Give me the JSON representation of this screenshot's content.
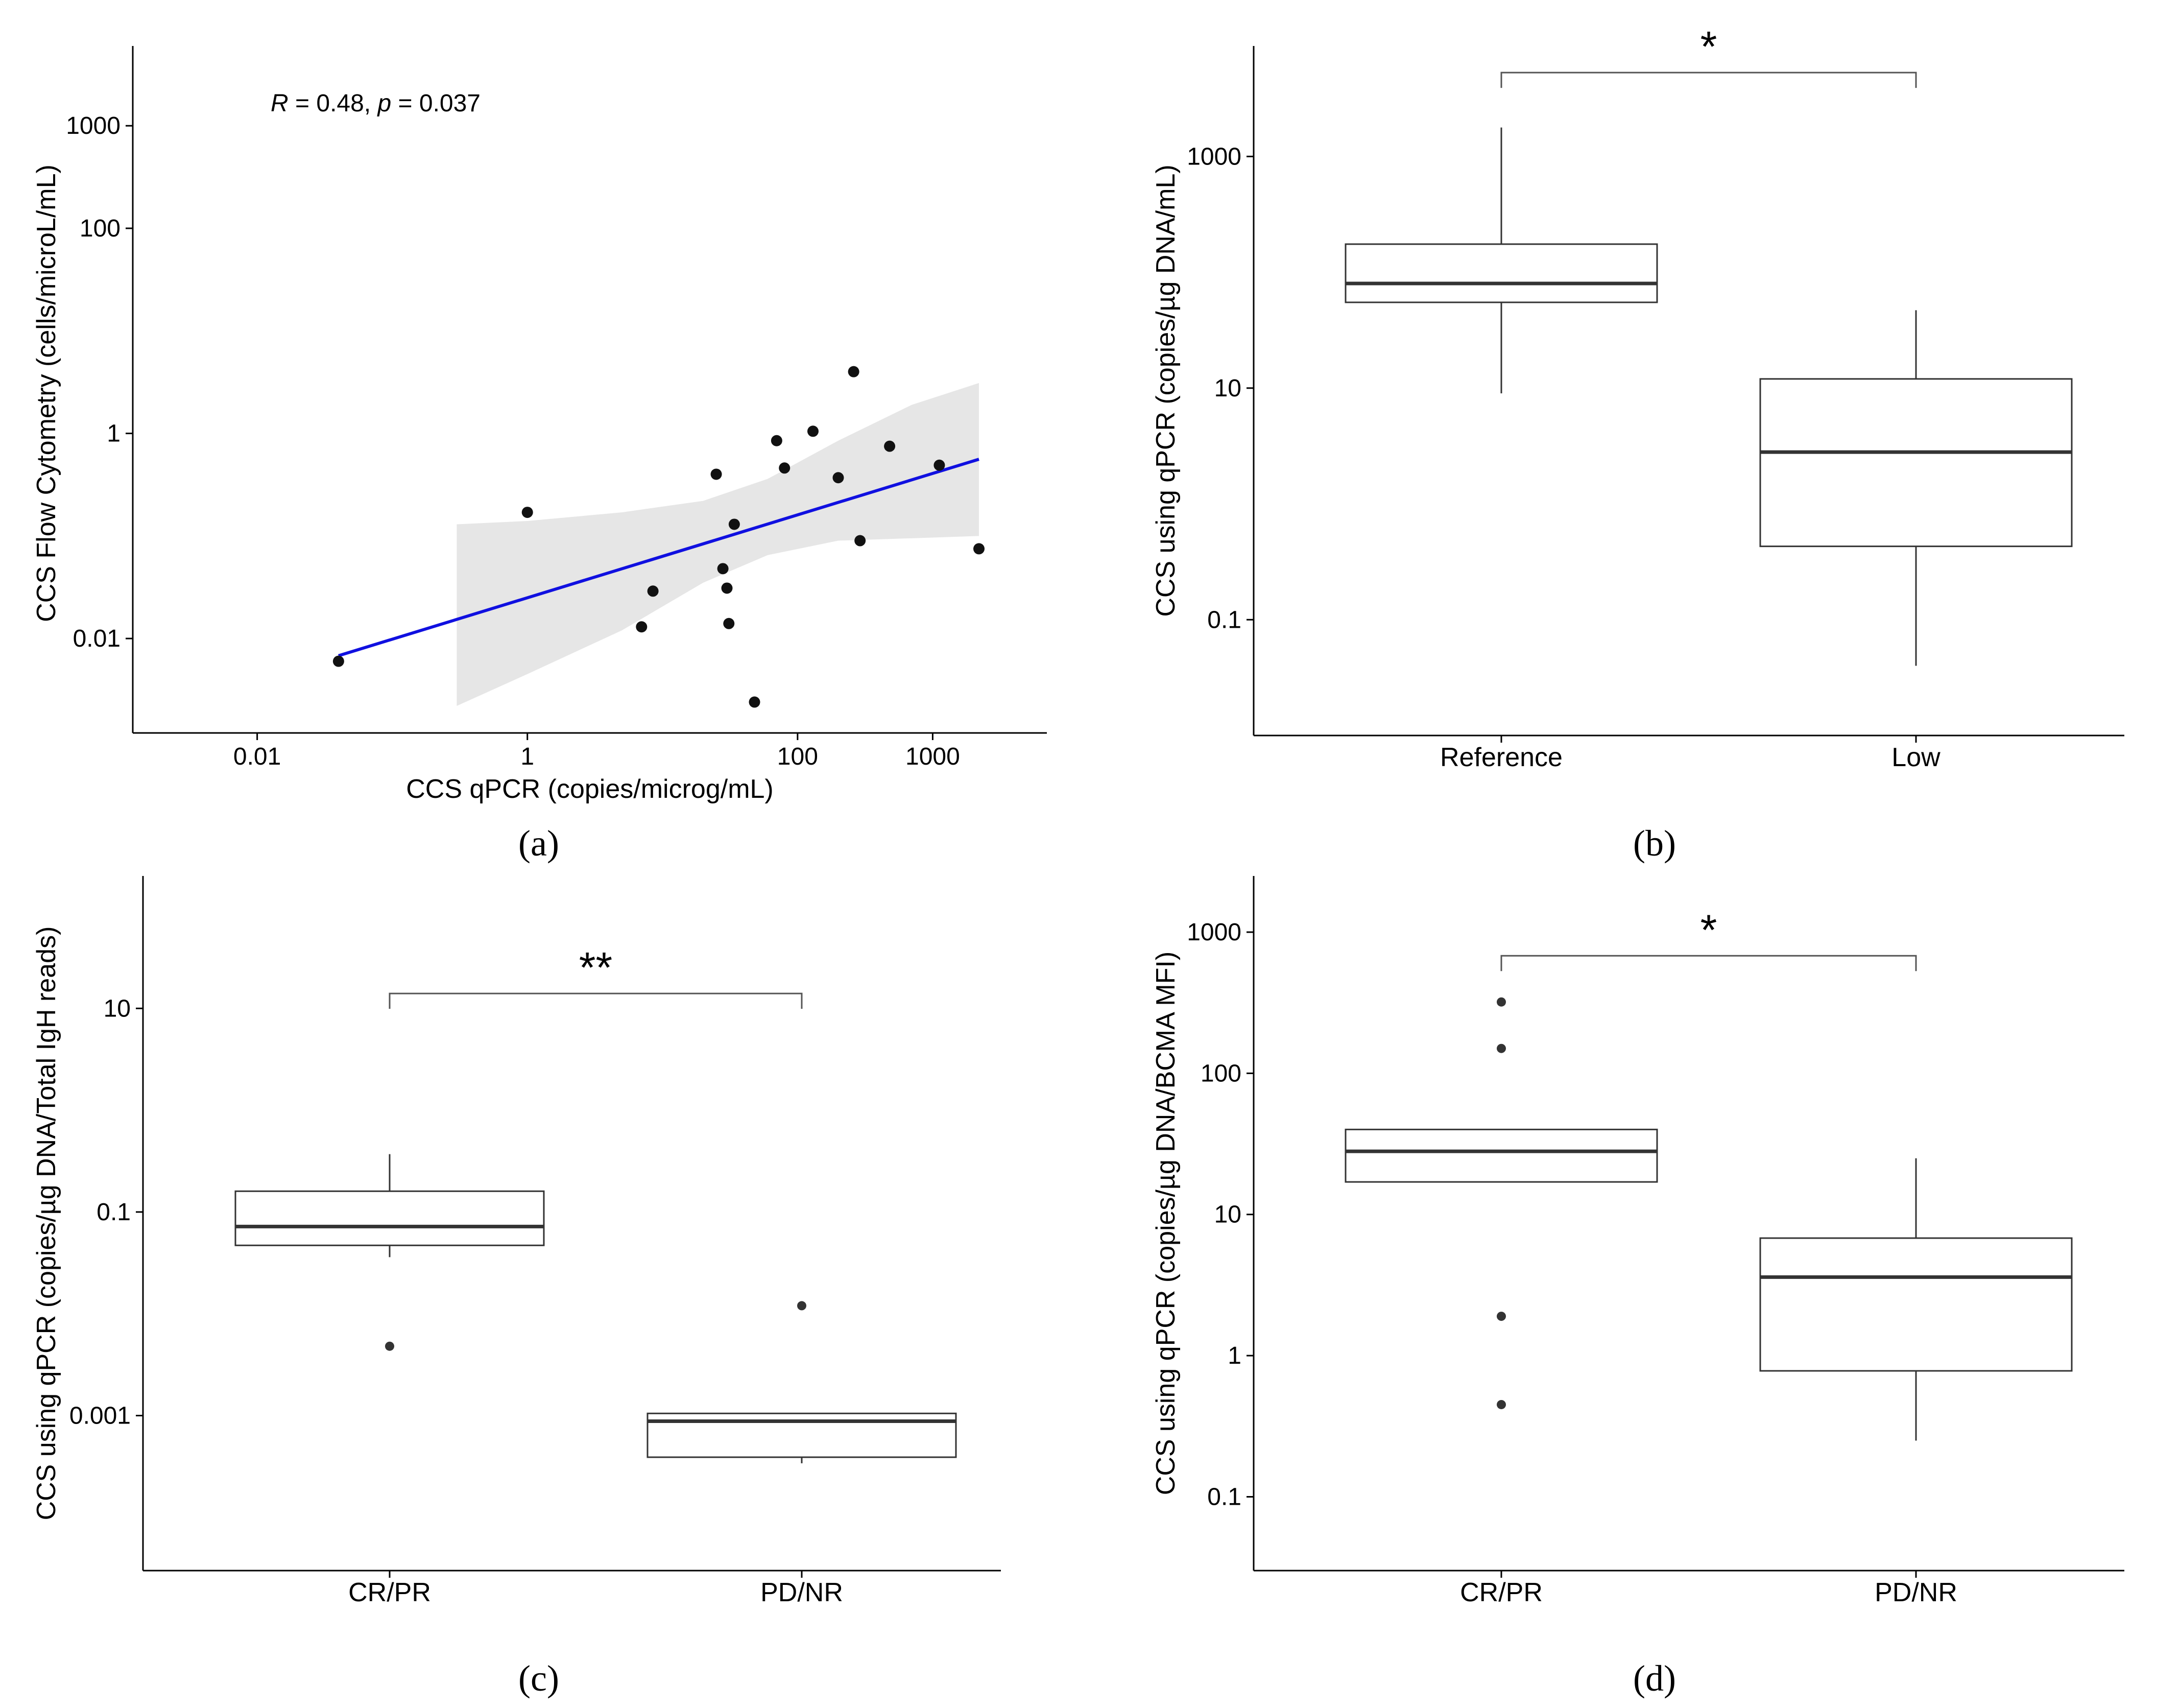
{
  "colors": {
    "line": "#1010e0",
    "band": "#e6e6e6",
    "point": "#111111",
    "point_inner": "#555555",
    "box": "#333333"
  },
  "chart_data": [
    {
      "id": "a",
      "type": "scatter",
      "panel_label": "(a)",
      "xlabel": "CCS qPCR (copies/microg/mL)",
      "ylabel": "CCS Flow Cytometry (cells/microL/mL)",
      "xscale": "log10",
      "yscale": "log10",
      "xlim": [
        0.0012,
        7000
      ],
      "ylim": [
        0.0012,
        6000
      ],
      "xticks": [
        0.01,
        1,
        100,
        1000
      ],
      "xtick_labels": [
        "0.01",
        "1",
        "100",
        "1000"
      ],
      "yticks": [
        0.01,
        1,
        100,
        1000
      ],
      "ytick_labels": [
        "0.01",
        "1",
        "100",
        "1000"
      ],
      "annotation": {
        "R": "0.48",
        "p": "0.037"
      },
      "points": [
        {
          "x": 0.04,
          "y": 0.006
        },
        {
          "x": 1.0,
          "y": 0.17
        },
        {
          "x": 7.0,
          "y": 0.013
        },
        {
          "x": 8.5,
          "y": 0.029
        },
        {
          "x": 25,
          "y": 0.4
        },
        {
          "x": 28,
          "y": 0.048
        },
        {
          "x": 30,
          "y": 0.031
        },
        {
          "x": 31,
          "y": 0.014
        },
        {
          "x": 34,
          "y": 0.13
        },
        {
          "x": 48,
          "y": 0.0024
        },
        {
          "x": 70,
          "y": 0.85
        },
        {
          "x": 80,
          "y": 0.46
        },
        {
          "x": 130,
          "y": 1.05
        },
        {
          "x": 200,
          "y": 0.37
        },
        {
          "x": 260,
          "y": 4.0
        },
        {
          "x": 290,
          "y": 0.09
        },
        {
          "x": 480,
          "y": 0.75
        },
        {
          "x": 1120,
          "y": 0.49
        },
        {
          "x": 2200,
          "y": 0.075
        }
      ],
      "fit": {
        "x": [
          0.04,
          2200
        ],
        "y": [
          0.0068,
          0.56
        ]
      },
      "confidence_band": [
        {
          "x": 0.3,
          "lo": 0.0022,
          "hi": 0.13
        },
        {
          "x": 1,
          "lo": 0.0045,
          "hi": 0.14
        },
        {
          "x": 5,
          "lo": 0.012,
          "hi": 0.17
        },
        {
          "x": 20,
          "lo": 0.035,
          "hi": 0.22
        },
        {
          "x": 60,
          "lo": 0.065,
          "hi": 0.36
        },
        {
          "x": 200,
          "lo": 0.09,
          "hi": 0.85
        },
        {
          "x": 700,
          "lo": 0.095,
          "hi": 1.9
        },
        {
          "x": 2200,
          "lo": 0.1,
          "hi": 3.1
        }
      ]
    },
    {
      "id": "b",
      "type": "box",
      "panel_label": "(b)",
      "ylabel": "CCS using qPCR (copies/µg DNA/mL)",
      "yscale": "log10",
      "ylim": [
        0.01,
        9000
      ],
      "yticks": [
        0.1,
        10,
        1000
      ],
      "ytick_labels": [
        "0.1",
        "10",
        "1000"
      ],
      "categories": [
        "Reference",
        "Low"
      ],
      "boxes": [
        {
          "lower": 9,
          "q1": 55,
          "median": 80,
          "q3": 175,
          "upper": 1780
        },
        {
          "lower": 0.04,
          "q1": 0.43,
          "median": 2.8,
          "q3": 12,
          "upper": 47
        }
      ],
      "significance": {
        "label": "*",
        "between": [
          0,
          1
        ],
        "y": 5300
      }
    },
    {
      "id": "c",
      "type": "box",
      "panel_label": "(c)",
      "ylabel": "CCS using qPCR (copies/µg DNA/Total IgH reads)",
      "yscale": "log10",
      "ylim": [
        3e-05,
        200
      ],
      "yticks": [
        0.001,
        0.1,
        10
      ],
      "ytick_labels": [
        "0.001",
        "0.1",
        "10"
      ],
      "categories": [
        "CR/PR",
        "PD/NR"
      ],
      "boxes": [
        {
          "lower": 0.036,
          "q1": 0.047,
          "median": 0.072,
          "q3": 0.16,
          "upper": 0.37,
          "outliers": [
            0.0048
          ]
        },
        {
          "lower": 0.00034,
          "q1": 0.00039,
          "median": 0.00088,
          "q3": 0.00105,
          "upper": 0.00105,
          "outliers": [
            0.012
          ]
        }
      ],
      "significance": {
        "label": "**",
        "between": [
          0,
          1
        ],
        "y": 14
      }
    },
    {
      "id": "d",
      "type": "box",
      "panel_label": "(d)",
      "ylabel": "CCS using qPCR (copies/µg DNA/BCMA MFI)",
      "yscale": "log10",
      "ylim": [
        0.03,
        2500
      ],
      "yticks": [
        0.1,
        1,
        10,
        100,
        1000
      ],
      "ytick_labels": [
        "0.1",
        "1",
        "10",
        "100",
        "1000"
      ],
      "categories": [
        "CR/PR",
        "PD/NR"
      ],
      "boxes": [
        {
          "lower": 17,
          "q1": 17,
          "median": 28,
          "q3": 40,
          "upper": 40,
          "outliers": [
            320,
            150,
            1.9,
            0.45
          ]
        },
        {
          "lower": 0.25,
          "q1": 0.78,
          "median": 3.6,
          "q3": 6.8,
          "upper": 25
        }
      ],
      "significance": {
        "label": "*",
        "between": [
          0,
          1
        ],
        "y": 680
      }
    }
  ]
}
